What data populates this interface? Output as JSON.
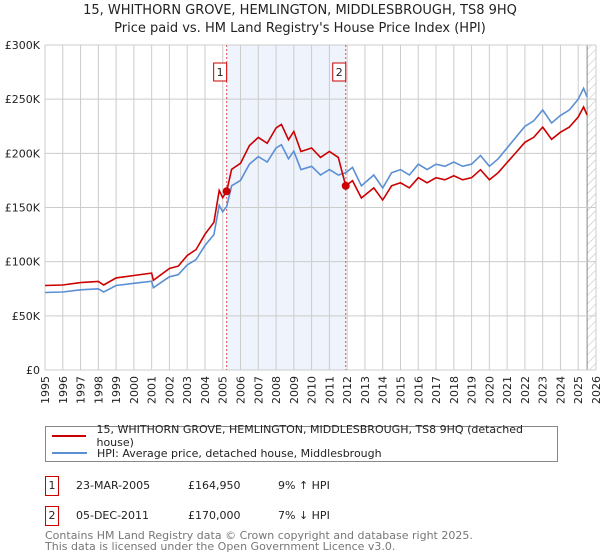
{
  "chart_data": {
    "type": "line",
    "title": "15, WHITHORN GROVE, HEMLINGTON, MIDDLESBROUGH, TS8 9HQ",
    "subtitle": "Price paid vs. HM Land Registry's House Price Index (HPI)",
    "xlim": [
      1995,
      2026
    ],
    "ylim": [
      0,
      300000
    ],
    "y_ticks": [
      {
        "v": 0,
        "label": "£0"
      },
      {
        "v": 50000,
        "label": "£50K"
      },
      {
        "v": 100000,
        "label": "£100K"
      },
      {
        "v": 150000,
        "label": "£150K"
      },
      {
        "v": 200000,
        "label": "£200K"
      },
      {
        "v": 250000,
        "label": "£250K"
      },
      {
        "v": 300000,
        "label": "£300K"
      }
    ],
    "x_ticks": [
      "1995",
      "1996",
      "1997",
      "1998",
      "1999",
      "2000",
      "2001",
      "2002",
      "2003",
      "2004",
      "2005",
      "2006",
      "2007",
      "2008",
      "2009",
      "2010",
      "2011",
      "2012",
      "2013",
      "2014",
      "2015",
      "2016",
      "2017",
      "2018",
      "2019",
      "2020",
      "2021",
      "2022",
      "2023",
      "2024",
      "2025",
      "2026"
    ],
    "grid": true,
    "shaded_range": [
      2005.22,
      2011.92
    ],
    "forecast_hatch_from": 2025.5,
    "x": [
      1995,
      1996,
      1997,
      1998,
      1998.3,
      1999,
      2000,
      2001,
      2001.1,
      2002,
      2002.5,
      2003,
      2003.5,
      2004,
      2004.5,
      2004.8,
      2005,
      2005.22,
      2005.5,
      2006,
      2006.5,
      2007,
      2007.5,
      2008,
      2008.3,
      2008.7,
      2009,
      2009.4,
      2010,
      2010.5,
      2011,
      2011.5,
      2011.92,
      2012.3,
      2012.8,
      2013.5,
      2014,
      2014.5,
      2015,
      2015.5,
      2016,
      2016.5,
      2017,
      2017.5,
      2018,
      2018.5,
      2019,
      2019.5,
      2020,
      2020.5,
      2021,
      2021.5,
      2022,
      2022.5,
      2023,
      2023.5,
      2024,
      2024.5,
      2025,
      2025.3,
      2025.5
    ],
    "series": [
      {
        "name": "15, WHITHORN GROVE, HEMLINGTON, MIDDLESBROUGH, TS8 9HQ (detached house)",
        "color": "#cc0000",
        "values": [
          78000,
          78500,
          80700,
          81800,
          78500,
          85000,
          87200,
          89400,
          82800,
          93700,
          95900,
          105700,
          111200,
          125400,
          136300,
          165700,
          159100,
          164950,
          185300,
          190800,
          207100,
          214700,
          209300,
          223500,
          226700,
          212600,
          220200,
          201700,
          204900,
          196200,
          201700,
          196200,
          170000,
          174700,
          158800,
          168100,
          156900,
          170000,
          172800,
          168100,
          177500,
          172800,
          177500,
          175600,
          179300,
          175600,
          177500,
          184900,
          175600,
          182100,
          191500,
          200800,
          210200,
          214800,
          224200,
          213000,
          219500,
          224200,
          233500,
          242800,
          235400
        ]
      },
      {
        "name": "HPI: Average price, detached house, Middlesbrough",
        "color": "#5b8fd4",
        "values": [
          71500,
          72000,
          74000,
          75000,
          72000,
          78000,
          80000,
          82000,
          76000,
          86000,
          88000,
          97000,
          102000,
          115000,
          125000,
          152000,
          146000,
          151000,
          170000,
          175000,
          190000,
          197000,
          192000,
          205000,
          208000,
          195000,
          202000,
          185000,
          188000,
          180000,
          185000,
          180000,
          182000,
          187000,
          170000,
          180000,
          168000,
          182000,
          185000,
          180000,
          190000,
          185000,
          190000,
          188000,
          192000,
          188000,
          190000,
          198000,
          188000,
          195000,
          205000,
          215000,
          225000,
          230000,
          240000,
          228000,
          235000,
          240000,
          250000,
          260000,
          252000
        ]
      }
    ],
    "sales": [
      {
        "id": "1",
        "x": 2005.22,
        "value": 164950,
        "date": "23-MAR-2005",
        "price": "£164,950",
        "hpi_diff": "9% ↑ HPI"
      },
      {
        "id": "2",
        "x": 2011.92,
        "value": 170000,
        "date": "05-DEC-2011",
        "price": "£170,000",
        "hpi_diff": "7% ↓ HPI"
      }
    ],
    "legend_position": "below"
  },
  "footer": {
    "line1": "Contains HM Land Registry data © Crown copyright and database right 2025.",
    "line2": "This data is licensed under the Open Government Licence v3.0."
  }
}
